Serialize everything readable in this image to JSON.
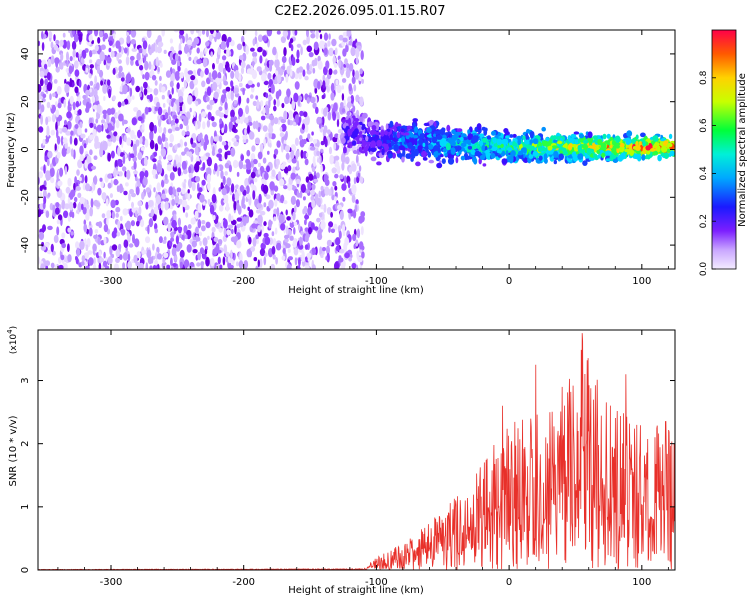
{
  "title": "C2E2.2026.095.01.15.R07",
  "chart_data": [
    {
      "type": "heatmap",
      "xlabel": "Height of straight line (km)",
      "ylabel": "Frequency (Hz)",
      "xlim": [
        -355,
        125
      ],
      "ylim": [
        -50,
        50
      ],
      "xticks": [
        -300,
        -200,
        -100,
        0,
        100
      ],
      "yticks": [
        -40,
        -20,
        0,
        20,
        40
      ],
      "noise_region_km": [
        -355,
        -110
      ],
      "band_center_hz": [
        {
          "x": -120,
          "y": 8
        },
        {
          "x": -100,
          "y": 4
        },
        {
          "x": -60,
          "y": 3
        },
        {
          "x": 0,
          "y": 1
        },
        {
          "x": 60,
          "y": 1
        },
        {
          "x": 120,
          "y": 1
        }
      ],
      "colorbar": {
        "label": "Normalized spectral amplitude",
        "range": [
          0.0,
          1.0
        ],
        "ticks": [
          "0.0",
          "0.2",
          "0.4",
          "0.6",
          "0.8"
        ]
      }
    },
    {
      "type": "line",
      "xlabel": "Height of straight line (km)",
      "ylabel": "SNR (10 * v/v)",
      "scale_label": "(x10",
      "scale_exponent": "4",
      "xlim": [
        -355,
        125
      ],
      "ylim": [
        0,
        3.8
      ],
      "xticks": [
        -300,
        -200,
        -100,
        0,
        100
      ],
      "yticks": [
        0,
        1,
        2,
        3
      ],
      "color": "#e8302a",
      "envelope": [
        {
          "x": -355,
          "y": 0.01
        },
        {
          "x": -110,
          "y": 0.02
        },
        {
          "x": -100,
          "y": 0.2
        },
        {
          "x": -80,
          "y": 0.45
        },
        {
          "x": -60,
          "y": 0.75
        },
        {
          "x": -40,
          "y": 1.2
        },
        {
          "x": -20,
          "y": 1.75
        },
        {
          "x": 0,
          "y": 2.3
        },
        {
          "x": 20,
          "y": 2.6
        },
        {
          "x": 40,
          "y": 2.8
        },
        {
          "x": 55,
          "y": 3.7
        },
        {
          "x": 80,
          "y": 2.6
        },
        {
          "x": 100,
          "y": 2.4
        },
        {
          "x": 125,
          "y": 2.2
        }
      ],
      "peaks": [
        {
          "x": 55,
          "y": 3.75
        },
        {
          "x": 20,
          "y": 3.25
        },
        {
          "x": 88,
          "y": 3.1
        },
        {
          "x": 40,
          "y": 2.9
        },
        {
          "x": -5,
          "y": 2.6
        },
        {
          "x": 118,
          "y": 2.35
        }
      ]
    }
  ]
}
